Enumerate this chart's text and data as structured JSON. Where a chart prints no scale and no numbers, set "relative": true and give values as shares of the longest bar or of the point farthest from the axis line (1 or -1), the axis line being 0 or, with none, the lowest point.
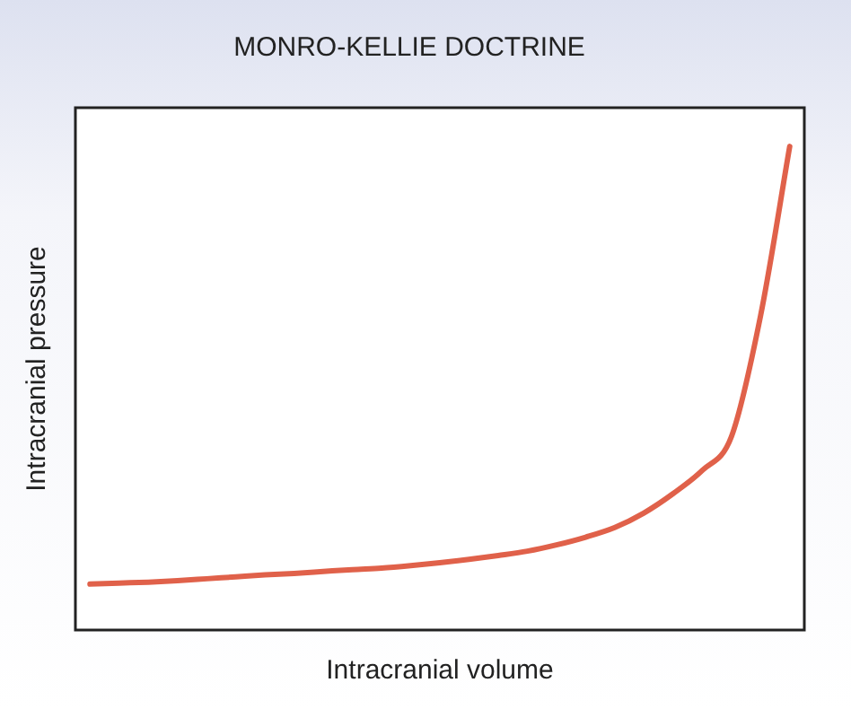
{
  "chart_data": {
    "type": "line",
    "title": "MONRO-KELLIE DOCTRINE",
    "xlabel": "Intracranial volume",
    "ylabel": "Intracranial pressure",
    "relative": true,
    "grid": false,
    "legend": false,
    "marker": "none",
    "line_style": "solid",
    "tick_labels": false,
    "categories": [
      null,
      null,
      null,
      null,
      null,
      null,
      null,
      null,
      null,
      null,
      null,
      null,
      null,
      null,
      null,
      null,
      null,
      null,
      null,
      null,
      null,
      null,
      null,
      null,
      null
    ],
    "series": [
      {
        "color": "#e0614a",
        "values": [
          0.095,
          0.097,
          0.099,
          0.102,
          0.106,
          0.11,
          0.114,
          0.117,
          0.121,
          0.125,
          0.128,
          0.133,
          0.139,
          0.146,
          0.154,
          0.163,
          0.176,
          0.192,
          0.212,
          0.242,
          0.282,
          0.33,
          0.4,
          0.65,
          1
        ]
      }
    ]
  }
}
